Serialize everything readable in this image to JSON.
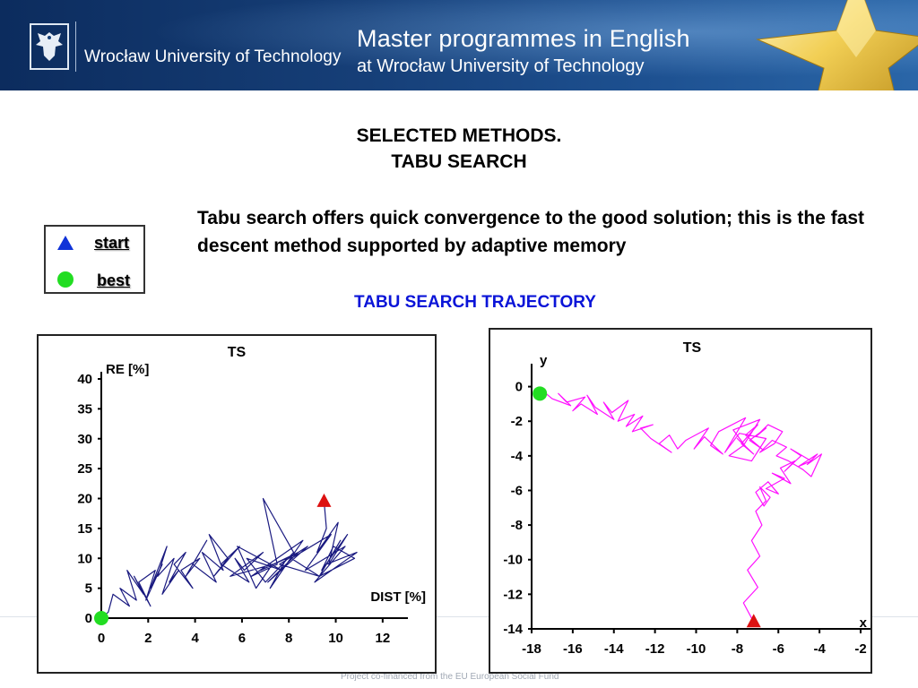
{
  "header": {
    "university_name": "Wrocław University of Technology",
    "programme_title": "Master programmes in English",
    "programme_subtitle": "at Wrocław University of Technology",
    "colors": {
      "banner": "#163f78",
      "star": "#f2cf55"
    }
  },
  "slide": {
    "title_line1": "SELECTED METHODS.",
    "title_line2": "TABU SEARCH",
    "intro_text": "Tabu search offers quick convergence to the good solution; this is the fast descent method supported by adaptive memory",
    "trajectory_title": "TABU SEARCH TRAJECTORY",
    "trajectory_title_color": "#0a14d8"
  },
  "legend": {
    "items": [
      {
        "label": "start",
        "marker": "triangle-icon",
        "color": "#1033d8"
      },
      {
        "label": "best",
        "marker": "circle-icon",
        "color": "#22dd22"
      }
    ]
  },
  "footer": {
    "cofinance_text": "Project co-financed from the EU European Social Fund"
  },
  "chart_data": [
    {
      "type": "line",
      "title": "TS",
      "xlabel": "DIST [%]",
      "ylabel": "RE [%]",
      "xlim": [
        0,
        13
      ],
      "ylim": [
        0,
        40
      ],
      "xticks": [
        0,
        2,
        4,
        6,
        8,
        10,
        12
      ],
      "yticks": [
        0,
        5,
        10,
        15,
        20,
        25,
        30,
        35,
        40
      ],
      "line_color": "#1a1a80",
      "grid": false,
      "best": {
        "x": 0,
        "y": 0,
        "color": "#22dd22"
      },
      "start": {
        "x": 9.5,
        "y": 19.5,
        "color": "#dd1111"
      },
      "series": [
        {
          "x": [
            9.5,
            9.6,
            9.2,
            10.1,
            9.7,
            10.5,
            9.4,
            9.9,
            10.8,
            9.3,
            10.2,
            9.6,
            10.9,
            9.1,
            10.4,
            8.7,
            9.8,
            8.1,
            9.3,
            7.6,
            8.8,
            7.1,
            8.4,
            6.8,
            7.9,
            7.2,
            8.6,
            6.4,
            7.5,
            6.9,
            8.2,
            7.0,
            6.2,
            7.7,
            5.8,
            6.6,
            7.3,
            5.5,
            6.9,
            6.1,
            5.7,
            6.3,
            5.1,
            5.9,
            4.8,
            5.4,
            4.6,
            5.2,
            4.3,
            4.9,
            3.9,
            4.5,
            3.6,
            4.2,
            3.4,
            3.9,
            3.1,
            3.6,
            2.9,
            3.3,
            2.6,
            3.1,
            2.4,
            2.8,
            2.1,
            2.6,
            1.9,
            2.3,
            1.6,
            2.1,
            1.4,
            1.8,
            1.1,
            1.5,
            0.8,
            1.2,
            0.5,
            0.3,
            0
          ],
          "y": [
            19.5,
            15,
            11,
            16,
            9,
            14,
            8,
            12,
            10,
            7,
            13,
            9,
            11,
            6,
            12,
            8,
            14,
            10,
            7,
            9,
            12,
            6,
            11,
            8,
            10,
            5,
            13,
            7,
            9,
            20,
            11,
            6,
            10,
            8,
            12,
            5,
            9,
            7,
            11,
            8,
            10,
            6,
            9,
            12,
            7,
            10,
            14,
            8,
            11,
            6,
            9,
            13,
            7,
            10,
            8,
            5,
            9,
            11,
            6,
            8,
            4,
            10,
            7,
            12,
            5,
            9,
            3,
            8,
            6,
            2,
            7,
            4,
            8,
            3,
            5,
            2,
            4,
            1,
            0
          ]
        }
      ]
    },
    {
      "type": "line",
      "title": "TS",
      "xlabel": "x",
      "ylabel": "y",
      "xlim": [
        -18,
        -2
      ],
      "ylim": [
        -14,
        0.6
      ],
      "xticks": [
        -18,
        -16,
        -14,
        -12,
        -10,
        -8,
        -6,
        -4,
        -2
      ],
      "yticks": [
        -14,
        -12,
        -10,
        -8,
        -6,
        -4,
        -2,
        0
      ],
      "line_color": "#ff10ff",
      "grid": false,
      "start": {
        "x": -7.2,
        "y": -13.6,
        "color": "#dd1111"
      },
      "best": {
        "x": -17.6,
        "y": -0.4,
        "color": "#22dd22"
      },
      "series": [
        {
          "x": [
            -7.2,
            -7.7,
            -7.0,
            -7.5,
            -6.9,
            -7.3,
            -6.8,
            -7.1,
            -6.6,
            -6.9,
            -6.4,
            -6.7,
            -7.1,
            -6.5,
            -6.0,
            -6.6,
            -5.7,
            -6.3,
            -5.4,
            -5.9,
            -5.2,
            -5.7,
            -4.9,
            -5.4,
            -4.4,
            -5.0,
            -4.1,
            -4.6,
            -3.9,
            -4.4,
            -4.8,
            -5.5,
            -6.1,
            -5.6,
            -6.3,
            -6.9,
            -6.2,
            -5.8,
            -6.5,
            -7.1,
            -6.6,
            -7.4,
            -6.8,
            -7.6,
            -7.0,
            -7.8,
            -7.2,
            -8.0,
            -7.5,
            -8.2,
            -6.9,
            -7.7,
            -8.4,
            -7.3,
            -6.6,
            -7.9,
            -8.6,
            -7.6,
            -8.9,
            -9.3,
            -8.7,
            -9.6,
            -10.1,
            -9.4,
            -10.5,
            -10.9,
            -11.3,
            -11.8,
            -11.2,
            -12.2,
            -12.7,
            -12.1,
            -13.1,
            -12.6,
            -13.4,
            -13.0,
            -13.8,
            -13.3,
            -14.1,
            -14.5,
            -14.0,
            -14.9,
            -15.3,
            -14.8,
            -15.6,
            -16.0,
            -15.4,
            -16.3,
            -16.7,
            -16.1,
            -17.0,
            -17.4,
            -17.6
          ],
          "y": [
            -13.6,
            -12.5,
            -11.6,
            -10.6,
            -9.8,
            -8.9,
            -8.0,
            -7.2,
            -6.6,
            -5.8,
            -6.4,
            -6.9,
            -6.1,
            -5.5,
            -6.2,
            -5.9,
            -5.3,
            -5.0,
            -5.6,
            -4.7,
            -4.3,
            -4.9,
            -4.0,
            -3.6,
            -4.3,
            -4.6,
            -3.9,
            -4.5,
            -3.9,
            -5.2,
            -4.8,
            -4.3,
            -4.0,
            -3.5,
            -3.1,
            -3.8,
            -3.3,
            -2.6,
            -2.2,
            -2.9,
            -2.4,
            -3.1,
            -3.6,
            -2.8,
            -2.2,
            -3.3,
            -3.9,
            -3.0,
            -3.6,
            -2.5,
            -1.9,
            -3.4,
            -4.0,
            -4.3,
            -3.0,
            -2.7,
            -3.8,
            -1.8,
            -2.6,
            -3.4,
            -3.9,
            -2.9,
            -3.6,
            -2.4,
            -3.1,
            -3.6,
            -2.8,
            -3.3,
            -3.8,
            -3.0,
            -2.4,
            -2.2,
            -2.6,
            -1.7,
            -2.3,
            -1.6,
            -2.0,
            -0.8,
            -1.5,
            -0.9,
            -1.9,
            -1.2,
            -0.5,
            -1.6,
            -1.0,
            -1.4,
            -0.6,
            -0.9,
            -0.4,
            -1.1,
            -0.7,
            -0.3,
            -0.4
          ]
        }
      ]
    }
  ]
}
